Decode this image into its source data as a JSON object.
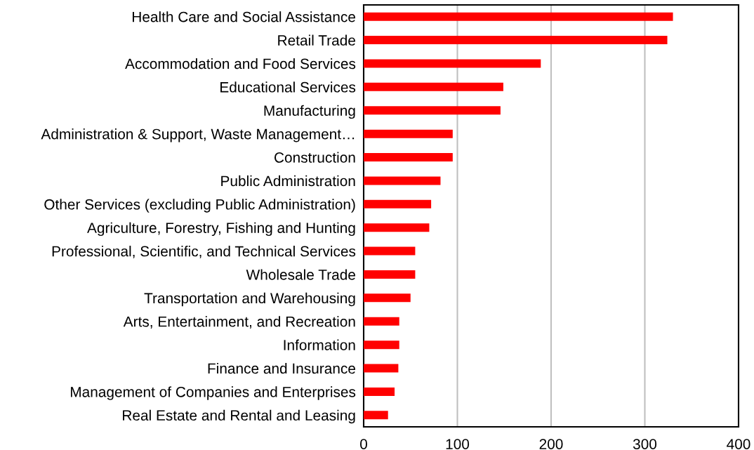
{
  "chart_data": {
    "type": "bar",
    "orientation": "horizontal",
    "categories": [
      "Health Care and Social Assistance",
      "Retail Trade",
      "Accommodation and Food Services",
      "Educational Services",
      "Manufacturing",
      "Administration & Support, Waste Management…",
      "Construction",
      "Public Administration",
      "Other Services (excluding Public Administration)",
      "Agriculture, Forestry, Fishing and Hunting",
      "Professional, Scientific, and Technical Services",
      "Wholesale Trade",
      "Transportation and Warehousing",
      "Arts, Entertainment, and Recreation",
      "Information",
      "Finance and Insurance",
      "Management of Companies and Enterprises",
      "Real Estate and Rental and Leasing"
    ],
    "values": [
      330,
      324,
      189,
      149,
      146,
      95,
      95,
      82,
      72,
      70,
      55,
      55,
      50,
      38,
      38,
      37,
      33,
      26
    ],
    "color": "#ff0000",
    "xlim": [
      0,
      400
    ],
    "xticks": [
      0,
      100,
      200,
      300,
      400
    ],
    "grid": "x",
    "legend": false
  }
}
